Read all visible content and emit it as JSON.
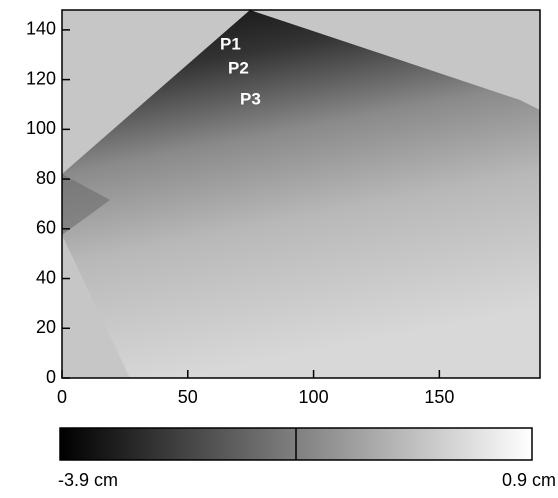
{
  "chart_data": {
    "type": "heatmap",
    "xlim": [
      0,
      190
    ],
    "xticks": [
      0,
      50,
      100,
      150
    ],
    "ylim": [
      0,
      148
    ],
    "yticks": [
      0,
      20,
      40,
      60,
      80,
      100,
      120,
      140
    ],
    "annotations": [
      "P1",
      "P2",
      "P3"
    ],
    "colorbar": {
      "range": [
        -3.9,
        0.9
      ],
      "colors": [
        "#000000",
        "#ffffff"
      ],
      "ticks": [
        {
          "value": -3.9,
          "label": "-3.9 cm"
        },
        {
          "value": 0.9,
          "label": "0.9 cm"
        }
      ]
    }
  }
}
